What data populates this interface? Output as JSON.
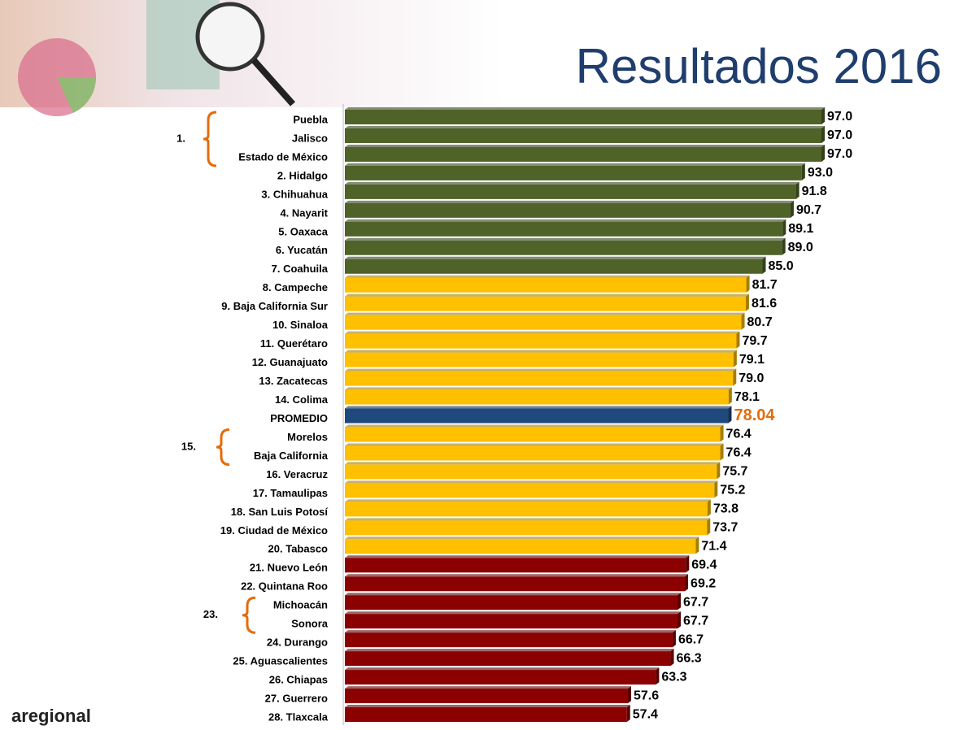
{
  "chart_data": {
    "type": "bar",
    "orientation": "horizontal",
    "title": "Resultados 2016",
    "categories": [
      "Puebla",
      "Jalisco",
      "Estado de México",
      "2. Hidalgo",
      "3. Chihuahua",
      "4. Nayarit",
      "5. Oaxaca",
      "6. Yucatán",
      "7. Coahuila",
      "8. Campeche",
      "9. Baja California Sur",
      "10. Sinaloa",
      "11. Querétaro",
      "12. Guanajuato",
      "13. Zacatecas",
      "14. Colima",
      "PROMEDIO",
      "Morelos",
      "Baja California",
      "16. Veracruz",
      "17. Tamaulipas",
      "18. San Luis Potosí",
      "19. Ciudad de México",
      "20. Tabasco",
      "21. Nuevo León",
      "22. Quintana Roo",
      "Michoacán",
      "Sonora",
      "24. Durango",
      "25. Aguascalientes",
      "26. Chiapas",
      "27. Guerrero",
      "28. Tlaxcala"
    ],
    "values": [
      97.0,
      97.0,
      97.0,
      93.0,
      91.8,
      90.7,
      89.1,
      89.0,
      85.0,
      81.7,
      81.6,
      80.7,
      79.7,
      79.1,
      79.0,
      78.1,
      78.04,
      76.4,
      76.4,
      75.7,
      75.2,
      73.8,
      73.7,
      71.4,
      69.4,
      69.2,
      67.7,
      67.7,
      66.7,
      66.3,
      63.3,
      57.6,
      57.4
    ],
    "value_labels": [
      "97.0",
      "97.0",
      "97.0",
      "93.0",
      "91.8",
      "90.7",
      "89.1",
      "89.0",
      "85.0",
      "81.7",
      "81.6",
      "80.7",
      "79.7",
      "79.1",
      "79.0",
      "78.1",
      "78.04",
      "76.4",
      "76.4",
      "75.7",
      "75.2",
      "73.8",
      "73.7",
      "71.4",
      "69.4",
      "69.2",
      "67.7",
      "67.7",
      "66.7",
      "66.3",
      "63.3",
      "57.6",
      "57.4"
    ],
    "colors": [
      "#4f6228",
      "#4f6228",
      "#4f6228",
      "#4f6228",
      "#4f6228",
      "#4f6228",
      "#4f6228",
      "#4f6228",
      "#4f6228",
      "#ffc000",
      "#ffc000",
      "#ffc000",
      "#ffc000",
      "#ffc000",
      "#ffc000",
      "#ffc000",
      "#1f497d",
      "#ffc000",
      "#ffc000",
      "#ffc000",
      "#ffc000",
      "#ffc000",
      "#ffc000",
      "#ffc000",
      "#8b0000",
      "#8b0000",
      "#8b0000",
      "#8b0000",
      "#8b0000",
      "#8b0000",
      "#8b0000",
      "#8b0000",
      "#8b0000"
    ],
    "annotations": [
      "1.",
      "15.",
      "23."
    ],
    "brand": "aregional"
  }
}
